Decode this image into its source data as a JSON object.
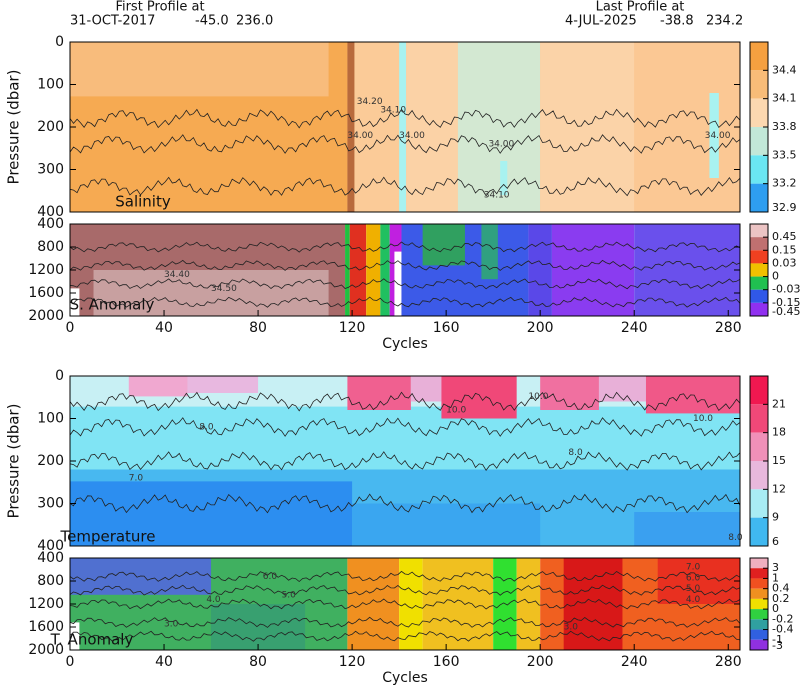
{
  "header": {
    "first": {
      "label": "First Profile at",
      "date": "31-OCT-2017",
      "lat": "-45.0",
      "lon": "236.0"
    },
    "last": {
      "label": "Last Profile at",
      "date": "4-JUL-2025",
      "lat": "-38.8",
      "lon": "234.2"
    }
  },
  "chart_data": [
    {
      "type": "contour",
      "title": "Salinity",
      "ylabel": "Pressure (dbar)",
      "ylim": [
        400,
        0
      ],
      "yticks": [
        0,
        100,
        200,
        300,
        400
      ],
      "xlim": [
        0,
        285
      ],
      "colorbar": {
        "levels": [
          34.4,
          34.1,
          33.8,
          33.5,
          33.2,
          32.9
        ],
        "colors": [
          "#f5a040",
          "#f8bc78",
          "#fcd8b0",
          "#c2e8d8",
          "#6ae6f2",
          "#2e9ef0"
        ]
      },
      "contour_labels": [
        "34.20",
        "34.00",
        "34.10",
        "34.00",
        "34.10",
        "34.00",
        "34.00"
      ]
    },
    {
      "type": "contour",
      "title": "S. Anomaly",
      "xlabel": "Cycles",
      "ylim": [
        2000,
        400
      ],
      "yticks": [
        400,
        800,
        1200,
        1600,
        2000
      ],
      "xlim": [
        0,
        285
      ],
      "xticks": [
        0,
        40,
        80,
        120,
        160,
        200,
        240,
        280
      ],
      "colorbar": {
        "levels": [
          0.45,
          0.15,
          0.03,
          0,
          -0.03,
          -0.15,
          -0.45
        ],
        "colors": [
          "#ecc4c4",
          "#c07070",
          "#f04020",
          "#f0c000",
          "#20c050",
          "#3058e8",
          "#9030f0"
        ]
      },
      "contour_labels": [
        "34.40",
        "34.50"
      ]
    },
    {
      "type": "contour",
      "title": "Temperature",
      "ylabel": "Pressure (dbar)",
      "ylim": [
        400,
        0
      ],
      "yticks": [
        0,
        100,
        200,
        300,
        400
      ],
      "xlim": [
        0,
        285
      ],
      "colorbar": {
        "levels": [
          21,
          18,
          15,
          12,
          9,
          6
        ],
        "colors": [
          "#f01850",
          "#f04878",
          "#f090b8",
          "#e8b8dc",
          "#a8ecf4",
          "#40b8f0"
        ]
      },
      "contour_labels": [
        "10.0",
        "8.0",
        "10.0",
        "10.0",
        "8.0",
        "7.0",
        "8.0"
      ]
    },
    {
      "type": "contour",
      "title": "T. Anomaly",
      "xlabel": "Cycles",
      "ylim": [
        2000,
        400
      ],
      "yticks": [
        400,
        800,
        1200,
        1600,
        2000
      ],
      "xlim": [
        0,
        285
      ],
      "xticks": [
        0,
        40,
        80,
        120,
        160,
        200,
        240,
        280
      ],
      "colorbar": {
        "levels": [
          3,
          1,
          0.4,
          0.2,
          0,
          -0.2,
          -0.4,
          -1,
          -3
        ],
        "colors": [
          "#f0b0c0",
          "#e02020",
          "#f05020",
          "#f09020",
          "#f0e000",
          "#30d040",
          "#30a0a0",
          "#3060e0",
          "#9030e0"
        ]
      },
      "contour_labels": [
        "6.0",
        "5.0",
        "4.0",
        "3.0",
        "7.0",
        "6.0",
        "5.0",
        "4.0",
        "3.0"
      ]
    }
  ]
}
